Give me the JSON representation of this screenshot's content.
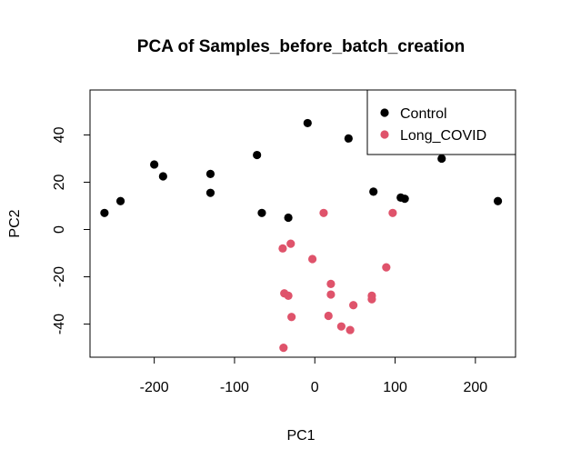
{
  "chart_data": {
    "type": "scatter",
    "title": "PCA of Samples_before_batch_creation",
    "xlabel": "PC1",
    "ylabel": "PC2",
    "xlim": [
      -280,
      250
    ],
    "ylim": [
      -54,
      59
    ],
    "x_ticks": [
      -200,
      -100,
      0,
      100,
      200
    ],
    "y_ticks": [
      -40,
      -20,
      0,
      20,
      40
    ],
    "grid": false,
    "legend_position": "top-right",
    "series": [
      {
        "name": "Control",
        "color": "#000000",
        "points": [
          [
            -262,
            7
          ],
          [
            -242,
            12
          ],
          [
            -200,
            27.5
          ],
          [
            -189,
            22.5
          ],
          [
            -130,
            23.5
          ],
          [
            -130,
            15.5
          ],
          [
            -72,
            31.5
          ],
          [
            -66,
            7
          ],
          [
            -33,
            5
          ],
          [
            -9,
            45
          ],
          [
            42,
            38.5
          ],
          [
            73,
            16
          ],
          [
            107,
            13.5
          ],
          [
            112,
            13
          ],
          [
            158,
            30
          ],
          [
            228,
            12
          ]
        ]
      },
      {
        "name": "Long_COVID",
        "color": "#DF536B",
        "points": [
          [
            11,
            7
          ],
          [
            97,
            7
          ],
          [
            -40,
            -8
          ],
          [
            -30,
            -6
          ],
          [
            -3,
            -12.5
          ],
          [
            89,
            -16
          ],
          [
            20,
            -23
          ],
          [
            -38,
            -27
          ],
          [
            -33,
            -28
          ],
          [
            20,
            -27.5
          ],
          [
            71,
            -28
          ],
          [
            71,
            -29.5
          ],
          [
            -29,
            -37
          ],
          [
            17,
            -36.5
          ],
          [
            48,
            -32
          ],
          [
            33,
            -41
          ],
          [
            44,
            -42.5
          ],
          [
            -39,
            -50
          ]
        ]
      }
    ]
  }
}
